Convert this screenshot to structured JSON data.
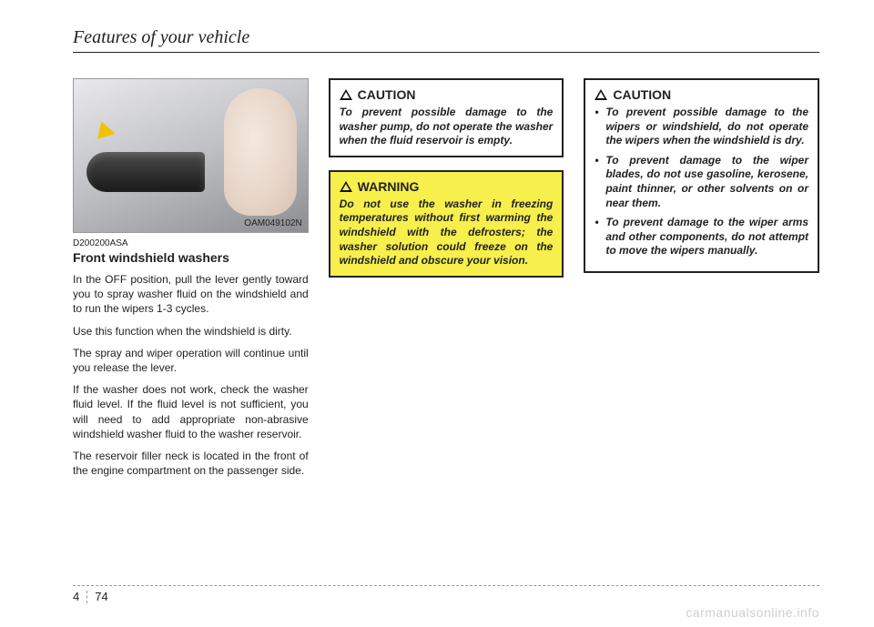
{
  "header": {
    "title": "Features of your vehicle"
  },
  "col1": {
    "photo_caption": "OAM049102N",
    "fig_code": "D200200ASA",
    "subhead": "Front windshield washers",
    "paras": [
      "In the OFF position, pull the lever gently toward you to spray washer fluid on the windshield and to run the wipers 1-3 cycles.",
      "Use this function when the windshield is dirty.",
      "The spray and wiper operation will continue until you release the lever.",
      "If the washer does not work, check the washer fluid level. If the fluid level is not sufficient, you will need to add appropriate non-abrasive windshield washer fluid to the washer reservoir.",
      "The reservoir filler neck is located in the front of the engine compartment on the passenger side."
    ]
  },
  "col2": {
    "caution": {
      "title": "CAUTION",
      "text": "To prevent possible damage to the washer pump, do not operate the washer when the fluid reservoir is empty."
    },
    "warning": {
      "title": "WARNING",
      "text": "Do not use the washer in freezing temperatures without first warming the windshield with the defrosters; the washer solution could freeze on the windshield and obscure your vision."
    }
  },
  "col3": {
    "caution": {
      "title": "CAUTION",
      "items": [
        "To prevent possible damage to the wipers or windshield, do not operate the wipers when the windshield is dry.",
        "To prevent damage to the wiper blades, do not use gasoline, kerosene, paint thinner, or other solvents on or near them.",
        "To prevent damage to the wiper arms and other components, do not attempt to move the wipers manually."
      ]
    }
  },
  "footer": {
    "chapter": "4",
    "page": "74"
  },
  "watermark": "carmanualsonline.info"
}
